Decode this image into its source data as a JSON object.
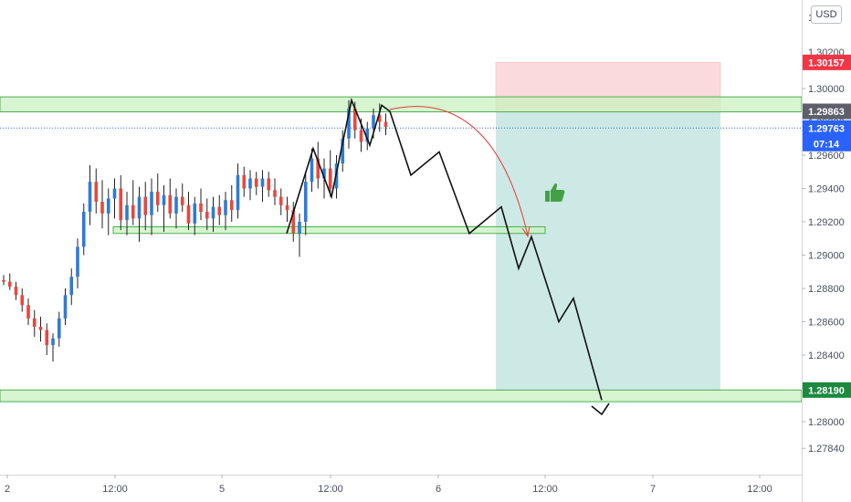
{
  "currency_label": "USD",
  "price_axis": {
    "ticks": [
      "1.30000",
      "1.29800",
      "1.29600",
      "1.29400",
      "1.29200",
      "1.29000",
      "1.28800",
      "1.28600",
      "1.28400",
      "1.28200",
      "1.28000",
      "1.27840"
    ],
    "top_partial": "1.3"
  },
  "time_axis": {
    "ticks": [
      "2",
      "12:00",
      "5",
      "12:00",
      "6",
      "12:00",
      "7",
      "12:00"
    ]
  },
  "price_labels": {
    "stop_loss": "1.30157",
    "resistance": "1.29863",
    "current_price": "1.29763",
    "countdown": "07:14",
    "take_profit": "1.28190",
    "partial_hidden": "1.30200"
  },
  "colors": {
    "candle_up": "#2e7bd6",
    "candle_down": "#e8473f",
    "zone_fill": "#c8f2c0",
    "zone_border": "#4caf50",
    "stop_zone": "#fadada",
    "target_zone": "#cde9e6",
    "current_line": "#2962ff",
    "stop_label_bg": "#f23645",
    "resistance_label_bg": "#5d606b",
    "current_label_bg": "#2962ff",
    "target_label_bg": "#1b8a3e",
    "arrow_red": "#e53935",
    "thumb_green": "#43a047"
  },
  "icons": {
    "thumb": "thumbs-up-icon"
  },
  "chart_data": {
    "type": "candlestick",
    "symbol_currency": "USD",
    "ylim": [
      1.2784,
      1.3023
    ],
    "zones": [
      {
        "name": "resistance",
        "from": 1.2986,
        "to": 1.2995
      },
      {
        "name": "support",
        "from": 1.2913,
        "to": 1.2917
      },
      {
        "name": "target",
        "from": 1.2812,
        "to": 1.2819
      }
    ],
    "position": {
      "entry": 1.2986,
      "stop": 1.30157,
      "target": 1.2819
    },
    "levels": {
      "resistance": 1.29863,
      "current": 1.29763,
      "target": 1.2819
    },
    "projected_path": [
      1.29863,
      1.2948,
      1.2962,
      1.2913,
      1.2929,
      1.2892,
      1.2911,
      1.286,
      1.2874,
      1.2813
    ],
    "candles": [
      [
        1.2885,
        1.2888,
        1.2882,
        1.2884
      ],
      [
        1.2884,
        1.2889,
        1.2879,
        1.2881
      ],
      [
        1.2881,
        1.2884,
        1.2873,
        1.2876
      ],
      [
        1.2876,
        1.288,
        1.2866,
        1.287
      ],
      [
        1.287,
        1.2874,
        1.2858,
        1.2862
      ],
      [
        1.2862,
        1.2867,
        1.2851,
        1.2857
      ],
      [
        1.2857,
        1.2863,
        1.2848,
        1.2855
      ],
      [
        1.2855,
        1.2859,
        1.284,
        1.2846
      ],
      [
        1.2846,
        1.2853,
        1.2836,
        1.285
      ],
      [
        1.285,
        1.2866,
        1.2845,
        1.2862
      ],
      [
        1.2862,
        1.288,
        1.2858,
        1.2876
      ],
      [
        1.2876,
        1.2892,
        1.287,
        1.2887
      ],
      [
        1.2887,
        1.291,
        1.288,
        1.2905
      ],
      [
        1.2905,
        1.2931,
        1.29,
        1.2926
      ],
      [
        1.2926,
        1.2954,
        1.2918,
        1.2944
      ],
      [
        1.2944,
        1.2952,
        1.2925,
        1.2932
      ],
      [
        1.2932,
        1.2945,
        1.2916,
        1.2925
      ],
      [
        1.2925,
        1.294,
        1.2912,
        1.2934
      ],
      [
        1.2934,
        1.2946,
        1.2922,
        1.294
      ],
      [
        1.294,
        1.2948,
        1.2915,
        1.2921
      ],
      [
        1.2921,
        1.2938,
        1.2912,
        1.293
      ],
      [
        1.293,
        1.2945,
        1.2918,
        1.2922
      ],
      [
        1.2922,
        1.2941,
        1.2908,
        1.2935
      ],
      [
        1.2935,
        1.2944,
        1.2915,
        1.2924
      ],
      [
        1.2924,
        1.2946,
        1.2912,
        1.2938
      ],
      [
        1.2938,
        1.2949,
        1.2926,
        1.293
      ],
      [
        1.293,
        1.2942,
        1.2914,
        1.2936
      ],
      [
        1.2936,
        1.2946,
        1.2922,
        1.2925
      ],
      [
        1.2925,
        1.294,
        1.2916,
        1.2935
      ],
      [
        1.2935,
        1.2943,
        1.2926,
        1.293
      ],
      [
        1.293,
        1.2938,
        1.2915,
        1.2919
      ],
      [
        1.2919,
        1.2935,
        1.2912,
        1.2931
      ],
      [
        1.2931,
        1.294,
        1.2921,
        1.2926
      ],
      [
        1.2926,
        1.2934,
        1.2915,
        1.2922
      ],
      [
        1.2922,
        1.2935,
        1.2914,
        1.2929
      ],
      [
        1.2929,
        1.2936,
        1.2918,
        1.2924
      ],
      [
        1.2924,
        1.2938,
        1.2915,
        1.2933
      ],
      [
        1.2933,
        1.2942,
        1.292,
        1.2927
      ],
      [
        1.2927,
        1.2955,
        1.2922,
        1.2948
      ],
      [
        1.2948,
        1.2953,
        1.2935,
        1.294
      ],
      [
        1.294,
        1.2951,
        1.2933,
        1.2946
      ],
      [
        1.2946,
        1.295,
        1.2936,
        1.2941
      ],
      [
        1.2941,
        1.2951,
        1.2932,
        1.2946
      ],
      [
        1.2946,
        1.295,
        1.2935,
        1.2939
      ],
      [
        1.2939,
        1.2946,
        1.293,
        1.2935
      ],
      [
        1.2935,
        1.294,
        1.2924,
        1.293
      ],
      [
        1.293,
        1.2935,
        1.292,
        1.2927
      ],
      [
        1.2927,
        1.2932,
        1.2908,
        1.2913
      ],
      [
        1.2913,
        1.2925,
        1.2899,
        1.292
      ],
      [
        1.292,
        1.295,
        1.2912,
        1.2944
      ],
      [
        1.2944,
        1.2964,
        1.2938,
        1.2958
      ],
      [
        1.2958,
        1.2968,
        1.294,
        1.2946
      ],
      [
        1.2946,
        1.2958,
        1.2934,
        1.2952
      ],
      [
        1.2952,
        1.2963,
        1.2935,
        1.294
      ],
      [
        1.294,
        1.296,
        1.2934,
        1.2955
      ],
      [
        1.2955,
        1.2975,
        1.295,
        1.297
      ],
      [
        1.297,
        1.2993,
        1.2964,
        1.2988
      ],
      [
        1.2988,
        1.2992,
        1.297,
        1.2975
      ],
      [
        1.2975,
        1.2982,
        1.2962,
        1.2968
      ],
      [
        1.2968,
        1.298,
        1.2963,
        1.2976
      ],
      [
        1.2976,
        1.2988,
        1.297,
        1.2984
      ],
      [
        1.2984,
        1.2991,
        1.2974,
        1.298
      ],
      [
        1.298,
        1.2985,
        1.2972,
        1.2977
      ]
    ]
  }
}
